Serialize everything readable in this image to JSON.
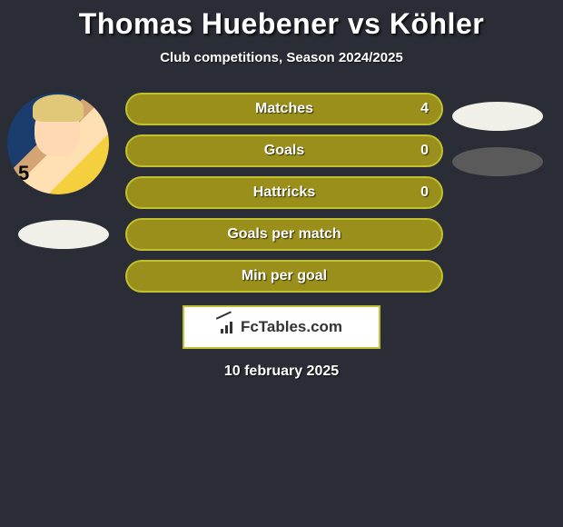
{
  "title": "Thomas Huebener vs Köhler",
  "subtitle": "Club competitions, Season 2024/2025",
  "date": "10 february 2025",
  "brand": "FcTables.com",
  "player_left_number": "5",
  "colors": {
    "background": "#2a2d35",
    "bar_fill": "#9a8f1a",
    "bar_border": "#c0c030",
    "text": "#ffffff",
    "title_color": "#ffffff",
    "ellipse_light": "#f0f0e8",
    "ellipse_dark": "#5a5a5a",
    "badge_bg": "#ffffff",
    "badge_border": "#c0c030"
  },
  "typography": {
    "title_fontsize": 32,
    "title_weight": 900,
    "subtitle_fontsize": 15,
    "stat_label_fontsize": 16,
    "stat_label_weight": 800,
    "date_fontsize": 16
  },
  "layout": {
    "stat_bar_width": 350,
    "stat_bar_height": 36,
    "stat_bar_radius": 18,
    "avatar_diameter": 112,
    "ellipse_width": 100,
    "ellipse_height": 32
  },
  "chart": {
    "type": "infographic",
    "rows": [
      {
        "label": "Matches",
        "left": "",
        "right": "4",
        "fill": "#9a8f1a",
        "border": "#c0c030"
      },
      {
        "label": "Goals",
        "left": "",
        "right": "0",
        "fill": "#9a8f1a",
        "border": "#c0c030"
      },
      {
        "label": "Hattricks",
        "left": "",
        "right": "0",
        "fill": "#9a8f1a",
        "border": "#c0c030"
      },
      {
        "label": "Goals per match",
        "left": "",
        "right": "",
        "fill": "#9a8f1a",
        "border": "#c0c030"
      },
      {
        "label": "Min per goal",
        "left": "",
        "right": "",
        "fill": "#9a8f1a",
        "border": "#c0c030"
      }
    ]
  }
}
